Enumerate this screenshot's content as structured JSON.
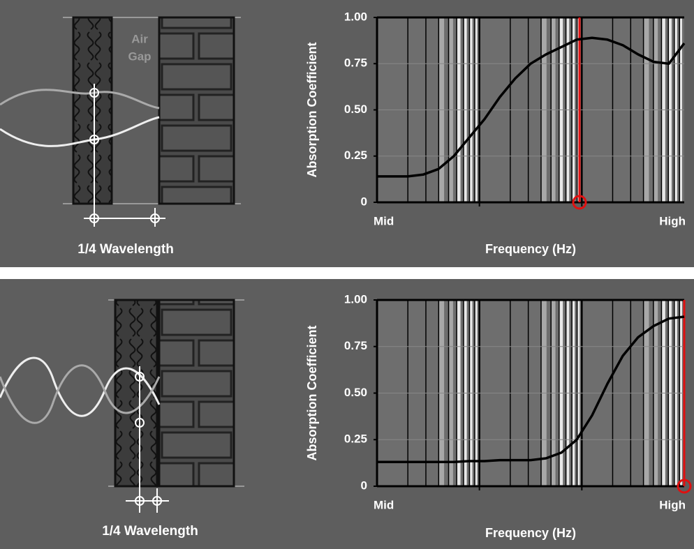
{
  "chart_data": [
    {
      "type": "line",
      "y_label": "Absorption Coefficient",
      "x_label": "Frequency (Hz)",
      "categories": [
        "Mid",
        null,
        null,
        null,
        null,
        null,
        null,
        null,
        null,
        null,
        null,
        null,
        null,
        null,
        null,
        null,
        null,
        null,
        null,
        null,
        "High"
      ],
      "values": [
        0.14,
        0.14,
        0.14,
        0.15,
        0.18,
        0.25,
        0.35,
        0.45,
        0.57,
        0.67,
        0.75,
        0.8,
        0.84,
        0.88,
        0.89,
        0.88,
        0.85,
        0.8,
        0.76,
        0.75,
        0.86
      ],
      "color": "#000000",
      "ylim": [
        0,
        1
      ],
      "yticks": [
        0,
        0.25,
        {
          "value": 0.5,
          "label": "0.50"
        },
        0.75,
        {
          "value": 1,
          "label": "1.00"
        }
      ],
      "grid": true
    },
    {
      "type": "line",
      "y_label": "Absorption Coefficient",
      "x_label": "Frequency (Hz)",
      "categories": [
        "Mid",
        null,
        null,
        null,
        null,
        null,
        null,
        null,
        null,
        null,
        null,
        null,
        null,
        null,
        null,
        null,
        null,
        null,
        null,
        null,
        "High"
      ],
      "values": [
        0.13,
        0.13,
        0.13,
        0.13,
        0.13,
        0.13,
        0.135,
        0.135,
        0.14,
        0.14,
        0.14,
        0.15,
        0.18,
        0.25,
        0.38,
        0.55,
        0.7,
        0.8,
        0.86,
        0.9,
        0.91
      ],
      "color": "#000000",
      "ylim": [
        0,
        1
      ],
      "yticks": [
        0,
        0.25,
        {
          "value": 0.5,
          "label": "0.50"
        },
        0.75,
        {
          "value": 1,
          "label": "1.00"
        }
      ],
      "grid": true
    }
  ],
  "diagrams": [
    {
      "air_gap": [
        "Air",
        "Gap"
      ],
      "wavelength": "1/4 Wavelength"
    },
    {
      "wavelength": "1/4 Wavelength"
    }
  ]
}
